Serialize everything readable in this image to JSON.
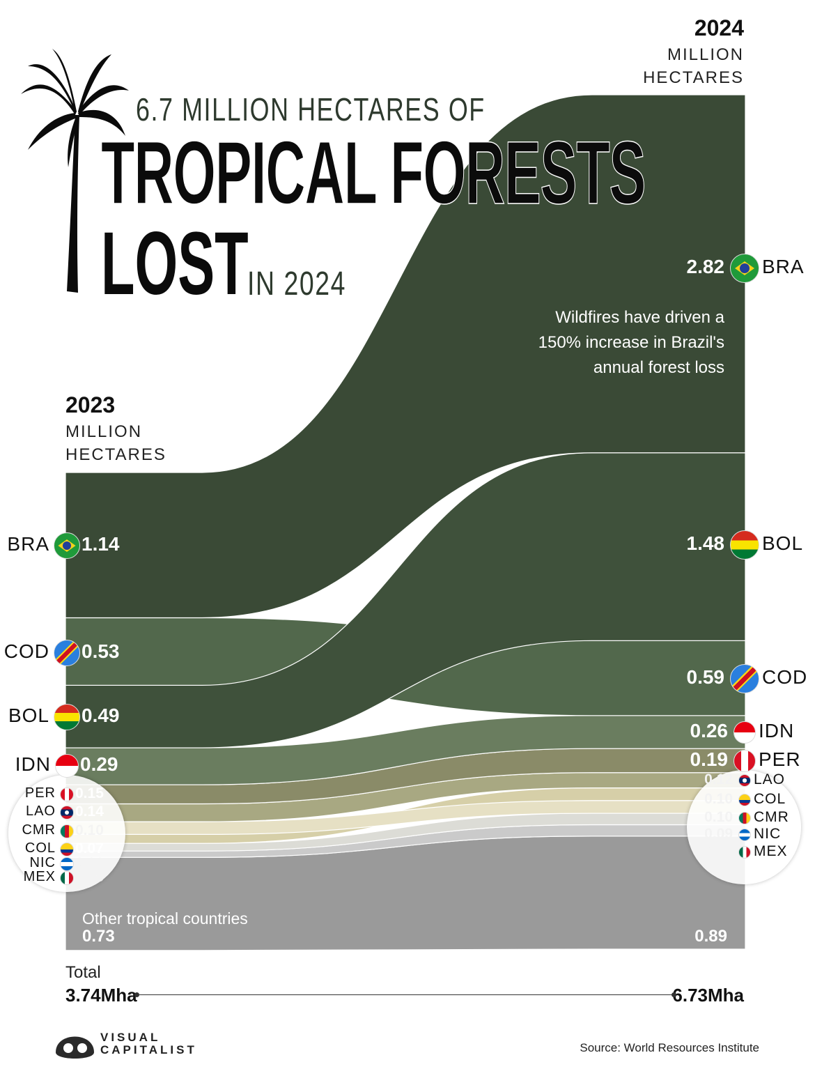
{
  "header": {
    "subtitle": "6.7 MILLION HECTARES OF",
    "title": "TROPICAL FORESTS",
    "title_line2": "LOST",
    "title_suffix": "IN 2024"
  },
  "columns": {
    "left_year": "2023",
    "left_unit_1": "MILLION",
    "left_unit_2": "HECTARES",
    "right_year": "2024",
    "right_unit_1": "MILLION",
    "right_unit_2": "HECTARES"
  },
  "annotation": "Wildfires have driven a 150% increase in Brazil's annual forest loss",
  "other_label": "Other tropical countries",
  "totals": {
    "label": "Total",
    "left": "3.74Mha",
    "right": "6.73Mha"
  },
  "footer": {
    "brand_1": "VISUAL",
    "brand_2": "CAPITALIST",
    "source": "Source: World Resources Institute"
  },
  "colors": {
    "brazil": "#3a4a36",
    "bolivia": "#3f513b",
    "drc": "#52684c",
    "indonesia": "#6a7d5f",
    "peru": "#8a8b68",
    "laos": "#a8a882",
    "colombia": "#d6cfa8",
    "cameroon": "#e6e0c4",
    "nicaragua": "#dcdcd6",
    "mexico": "#cacaca",
    "other": "#9a9a9a"
  },
  "chart_data": {
    "type": "sankey",
    "title": "6.7 MILLION HECTARES OF TROPICAL FORESTS LOST IN 2024",
    "unit": "million hectares",
    "x": [
      "2023",
      "2024"
    ],
    "rank_order_2023": [
      "BRA",
      "COD",
      "BOL",
      "IDN",
      "PER",
      "LAO",
      "CMR",
      "COL",
      "NIC",
      "MEX",
      "Other tropical countries"
    ],
    "rank_order_2024": [
      "BRA",
      "BOL",
      "COD",
      "IDN",
      "PER",
      "LAO",
      "COL",
      "CMR",
      "NIC",
      "MEX",
      "Other tropical countries"
    ],
    "series": [
      {
        "name": "BRA",
        "values": [
          1.14,
          2.82
        ],
        "labels": [
          "1.14",
          "2.82"
        ]
      },
      {
        "name": "COD",
        "values": [
          0.53,
          0.59
        ],
        "labels": [
          "0.53",
          "0.59"
        ]
      },
      {
        "name": "BOL",
        "values": [
          0.49,
          1.48
        ],
        "labels": [
          "0.49",
          "1.48"
        ]
      },
      {
        "name": "IDN",
        "values": [
          0.29,
          0.26
        ],
        "labels": [
          "0.29",
          "0.26"
        ]
      },
      {
        "name": "PER",
        "values": [
          0.15,
          0.19
        ],
        "labels": [
          "0.15",
          "0.19"
        ]
      },
      {
        "name": "LAO",
        "values": [
          0.14,
          0.12
        ],
        "labels": [
          "0.14",
          "0.12"
        ]
      },
      {
        "name": "CMR",
        "values": [
          0.1,
          0.1
        ],
        "labels": [
          "0.10",
          "0.10"
        ]
      },
      {
        "name": "COL",
        "values": [
          0.07,
          0.1
        ],
        "labels": [
          "0.07",
          "0.10"
        ]
      },
      {
        "name": "NIC",
        "values": [
          0.06,
          0.09
        ],
        "labels": [
          "0.06",
          "0.09"
        ]
      },
      {
        "name": "MEX",
        "values": [
          0.05,
          0.09
        ],
        "labels": [
          "0.05",
          "0.09"
        ]
      },
      {
        "name": "Other tropical countries",
        "values": [
          0.73,
          0.89
        ],
        "labels": [
          "0.73",
          "0.89"
        ]
      }
    ],
    "totals": [
      3.74,
      6.73
    ]
  }
}
